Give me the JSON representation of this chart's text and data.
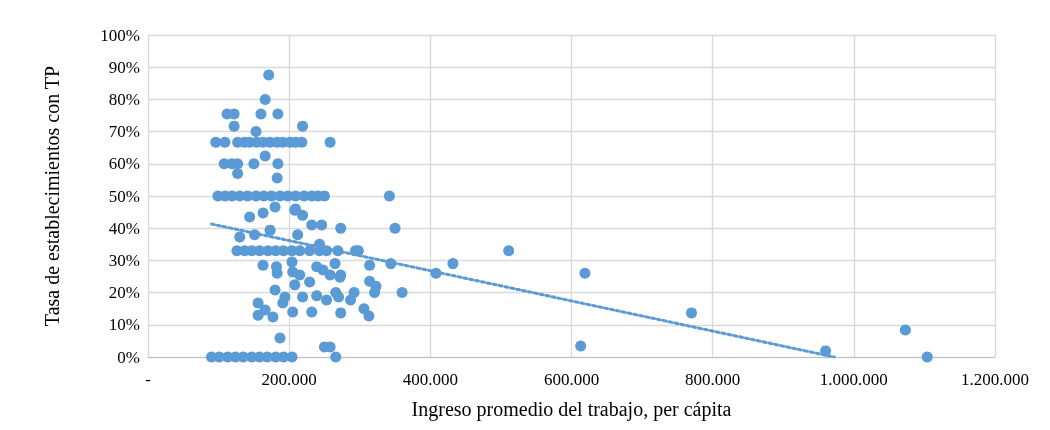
{
  "chart_data": {
    "type": "scatter",
    "xlabel": "Ingreso promedio del trabajo, per cápita",
    "ylabel": "Tasa de establecimientos con TP",
    "xlim": [
      0,
      1200000
    ],
    "xticks": [
      {
        "value": 0,
        "label": "-"
      },
      {
        "value": 200000,
        "label": "200.000"
      },
      {
        "value": 400000,
        "label": "400.000"
      },
      {
        "value": 600000,
        "label": "600.000"
      },
      {
        "value": 800000,
        "label": "800.000"
      },
      {
        "value": 1000000,
        "label": "1.000.000"
      },
      {
        "value": 1200000,
        "label": "1.200.000"
      }
    ],
    "ylim": [
      0,
      100
    ],
    "yticks": [
      {
        "value": 0,
        "label": "0%"
      },
      {
        "value": 10,
        "label": "10%"
      },
      {
        "value": 20,
        "label": "20%"
      },
      {
        "value": 30,
        "label": "30%"
      },
      {
        "value": 40,
        "label": "40%"
      },
      {
        "value": 50,
        "label": "50%"
      },
      {
        "value": 60,
        "label": "60%"
      },
      {
        "value": 70,
        "label": "70%"
      },
      {
        "value": 80,
        "label": "80%"
      },
      {
        "value": 90,
        "label": "90%"
      },
      {
        "value": 100,
        "label": "100%"
      }
    ],
    "grid": true,
    "marker": "circle",
    "series": [
      {
        "type": "scatter",
        "color": "#5b9bd5",
        "x": [
          171000,
          166000,
          112000,
          122000,
          160000,
          184000,
          122000,
          219000,
          153000,
          96000,
          109000,
          127000,
          137000,
          144000,
          154000,
          163000,
          173000,
          183000,
          191000,
          201000,
          209000,
          218000,
          258000,
          166000,
          108000,
          119000,
          127000,
          150000,
          184000,
          127000,
          183000,
          99000,
          109000,
          119000,
          130000,
          141000,
          153000,
          164000,
          175000,
          187000,
          198000,
          209000,
          221000,
          232000,
          241000,
          250000,
          342000,
          180000,
          209000,
          208000,
          163000,
          219000,
          144000,
          232000,
          246000,
          273000,
          350000,
          173000,
          151000,
          212000,
          130000,
          243000,
          126000,
          137000,
          147000,
          158000,
          170000,
          181000,
          192000,
          204000,
          215000,
          229000,
          243000,
          253000,
          269000,
          294000,
          298000,
          511000,
          204000,
          265000,
          344000,
          432000,
          163000,
          314000,
          182000,
          239000,
          248000,
          205000,
          183000,
          408000,
          619000,
          215000,
          258000,
          273000,
          272000,
          314000,
          229000,
          208000,
          323000,
          180000,
          266000,
          292000,
          321000,
          360000,
          239000,
          194000,
          219000,
          270000,
          253000,
          287000,
          156000,
          191000,
          306000,
          166000,
          205000,
          232000,
          273000,
          770000,
          156000,
          313000,
          177000,
          1073000,
          187000,
          613000,
          250000,
          258000,
          960000,
          90000,
          101000,
          113000,
          124000,
          135000,
          147000,
          158000,
          169000,
          181000,
          192000,
          204000,
          266000,
          1104000
        ],
        "values": [
          87.6,
          80,
          75.5,
          75.5,
          75.5,
          75.5,
          71.7,
          71.7,
          70,
          66.7,
          66.7,
          66.7,
          66.7,
          66.7,
          66.7,
          66.7,
          66.7,
          66.7,
          66.7,
          66.7,
          66.7,
          66.7,
          66.7,
          62.4,
          60,
          60,
          60,
          60,
          60,
          57,
          55.6,
          50,
          50,
          50,
          50,
          50,
          50,
          50,
          50,
          50,
          50,
          50,
          50,
          50,
          50,
          50,
          50,
          46.6,
          46,
          45.6,
          44.7,
          44,
          43.5,
          41,
          41,
          40,
          40,
          39.4,
          38,
          38,
          37.3,
          35,
          33,
          33,
          33,
          33,
          33,
          33,
          33,
          33,
          33,
          33,
          33,
          33,
          33,
          33,
          33,
          33,
          29.5,
          29,
          29,
          29,
          28.5,
          28.5,
          28,
          28,
          27,
          26.4,
          26,
          26,
          26,
          25.5,
          25.5,
          25.5,
          24.8,
          23.5,
          23.3,
          22.4,
          22,
          20.8,
          20,
          20,
          20,
          20,
          19,
          18.6,
          18.6,
          18.6,
          17.7,
          17.7,
          16.8,
          16.8,
          15,
          14.6,
          14,
          14,
          13.7,
          13.7,
          13,
          12.7,
          12.4,
          8.4,
          5.9,
          3.4,
          3.1,
          3.1,
          1.9,
          0,
          0,
          0,
          0,
          0,
          0,
          0,
          0,
          0,
          0,
          0,
          0,
          0
        ]
      },
      {
        "type": "line",
        "color": "#5b9bd5",
        "line_style": "dotted",
        "marker": "none",
        "x": [
          90000,
          972000
        ],
        "values": [
          41.3,
          0
        ]
      }
    ]
  }
}
